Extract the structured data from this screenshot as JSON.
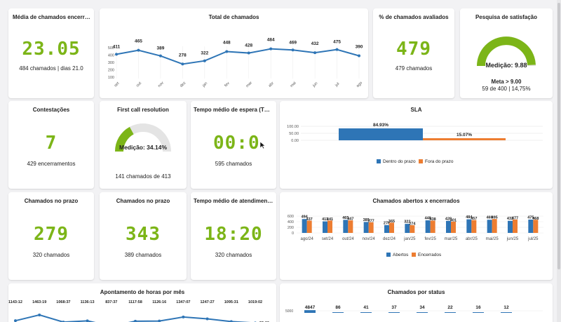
{
  "cards": {
    "media": {
      "title": "Média de chamados encerrados p...",
      "value": "23.05",
      "sub": "484 chamados | dias 21.0"
    },
    "total": {
      "title": "Total de chamados"
    },
    "pct_avaliados": {
      "title": "% de chamados avaliados",
      "value": "479",
      "sub": "479 chamados"
    },
    "pesquisa": {
      "title": "Pesquisa de satisfação",
      "medicao": "Medição: 9.88",
      "meta": "Meta > 9.00",
      "sub": "59 de 400 | 14,75%",
      "fraction": 0.988
    },
    "contestacoes": {
      "title": "Contestações",
      "value": "7",
      "sub": "429 encerramentos"
    },
    "fcr": {
      "title": "First call resolution",
      "medicao": "Medição: 34.14%",
      "sub": "141 chamados de 413",
      "fraction": 0.3414
    },
    "tme": {
      "title": "Tempo médio de espera (TME)",
      "value": "00:0",
      "sub": "595 chamados"
    },
    "sla": {
      "title": "SLA"
    },
    "prazo1": {
      "title": "Chamados no prazo",
      "value": "279",
      "sub": "320 chamados"
    },
    "prazo2": {
      "title": "Chamados no prazo",
      "value": "343",
      "sub": "389 chamados"
    },
    "tma": {
      "title": "Tempo médio de atendimento (TMA)",
      "value": "18:20",
      "sub": "320 chamados"
    },
    "abertos": {
      "title": "Chamados abertos x encerrados"
    },
    "apontamento": {
      "title": "Apontamento de horas por mês"
    },
    "status": {
      "title": "Chamados por status"
    }
  },
  "colors": {
    "green": "#7cb518",
    "blue": "#2e75b6",
    "orange": "#ed7d31",
    "gauge_bg": "#e4e4e4"
  },
  "chart_data": [
    {
      "type": "line",
      "title": "Total de chamados",
      "categories": [
        "set",
        "out",
        "nov",
        "dez",
        "jan",
        "fev",
        "mar",
        "abr",
        "mai",
        "jun",
        "jul",
        "ago"
      ],
      "values": [
        411,
        465,
        389,
        278,
        322,
        448,
        428,
        484,
        469,
        432,
        475,
        390
      ],
      "yticks": [
        "500",
        "400",
        "300",
        "200",
        "100"
      ],
      "ylim": [
        100,
        500
      ]
    },
    {
      "type": "bar",
      "title": "SLA",
      "categories": [
        "Dentro do prazo",
        "Fora do prazo"
      ],
      "values": [
        84.93,
        15.07
      ],
      "labels": [
        "84.93%",
        "15.07%"
      ],
      "yticks": [
        "100.00",
        "50.00",
        "0.00"
      ],
      "legend": [
        "Dentro do prazo",
        "Fora do prazo"
      ]
    },
    {
      "type": "bar",
      "title": "Chamados abertos x encerrados",
      "categories": [
        "ago/24",
        "set/24",
        "out/24",
        "nov/24",
        "dez/24",
        "jan/25",
        "fev/25",
        "mar/25",
        "abr/25",
        "mai/25",
        "jun/25",
        "jul/25"
      ],
      "series": [
        {
          "name": "Abertos",
          "values": [
            494,
            411,
            465,
            389,
            278,
            322,
            448,
            428,
            484,
            469,
            432,
            475
          ]
        },
        {
          "name": "Encerrados",
          "values": [
            437,
            441,
            447,
            377,
            365,
            274,
            438,
            401,
            457,
            495,
            477,
            468
          ]
        }
      ],
      "yticks": [
        "600",
        "400",
        "200",
        "0"
      ],
      "ylim": [
        0,
        600
      ]
    },
    {
      "type": "line",
      "title": "Apontamento de horas por mês",
      "labels": [
        "1143:12",
        "1463:19",
        "1068:37",
        "1136:13",
        "837:37",
        "1117:58",
        "1126:16",
        "1347:07",
        "1247:27",
        "1095:31",
        "1019:02",
        "29:00"
      ],
      "values": [
        1143.2,
        1463.3,
        1068.6,
        1136.2,
        837.6,
        1118.0,
        1126.3,
        1347.1,
        1247.5,
        1095.5,
        1019.0,
        29.0
      ]
    },
    {
      "type": "bar",
      "title": "Chamados por status",
      "values": [
        4847,
        86,
        41,
        37,
        34,
        22,
        16,
        12
      ],
      "ytick": "5000"
    }
  ]
}
